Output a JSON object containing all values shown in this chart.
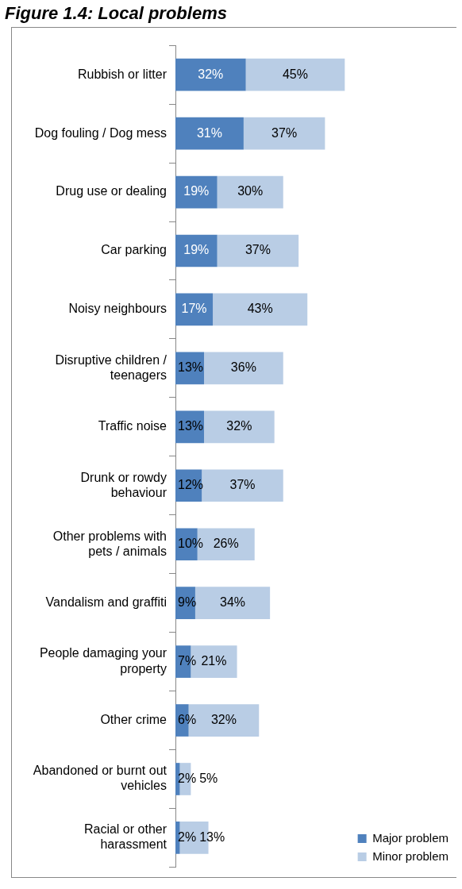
{
  "chart_data": {
    "type": "bar",
    "orientation": "horizontal",
    "stacked": true,
    "title": "Figure 1.4: Local problems",
    "legend": "right",
    "grid": false,
    "tick_labels": "y",
    "categories": [
      "Rubbish or litter",
      "Dog fouling / Dog mess",
      "Drug use or dealing",
      "Car parking",
      "Noisy neighbours",
      "Disruptive children / teenagers",
      "Traffic noise",
      "Drunk or rowdy behaviour",
      "Other problems with pets / animals",
      "Vandalism and graffiti",
      "People damaging your property",
      "Other crime",
      "Abandoned or burnt out vehicles",
      "Racial or other harassment"
    ],
    "series": [
      {
        "name": "Major problem",
        "color": "#4f81bd",
        "values": [
          32,
          31,
          19,
          19,
          17,
          13,
          13,
          12,
          10,
          9,
          7,
          6,
          2,
          2
        ],
        "value_labels": [
          "32%",
          "31%",
          "19%",
          "19%",
          "17%",
          "13%",
          "13%",
          "12%",
          "10%",
          "9%",
          "7%",
          "6%",
          "2%",
          "2%"
        ]
      },
      {
        "name": "Minor problem",
        "color": "#b9cde5",
        "values": [
          45,
          37,
          30,
          37,
          43,
          36,
          32,
          37,
          26,
          34,
          21,
          32,
          5,
          13
        ],
        "value_labels": [
          "45%",
          "37%",
          "30%",
          "37%",
          "43%",
          "36%",
          "32%",
          "37%",
          "26%",
          "34%",
          "21%",
          "32%",
          "5%",
          "13%"
        ]
      }
    ]
  }
}
